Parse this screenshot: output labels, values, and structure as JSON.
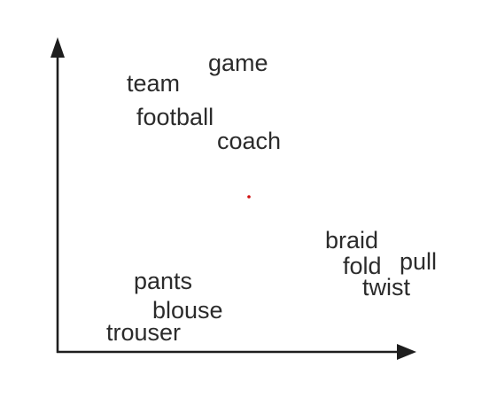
{
  "diagram": {
    "words": {
      "team": "team",
      "game": "game",
      "football": "football",
      "coach": "coach",
      "braid": "braid",
      "fold": "fold",
      "pull": "pull",
      "twist": "twist",
      "pants": "pants",
      "blouse": "blouse",
      "trouser": "trouser"
    },
    "colors": {
      "ink": "#2b2b2b",
      "axis": "#1e1e1e",
      "dot": "#d01010"
    }
  }
}
